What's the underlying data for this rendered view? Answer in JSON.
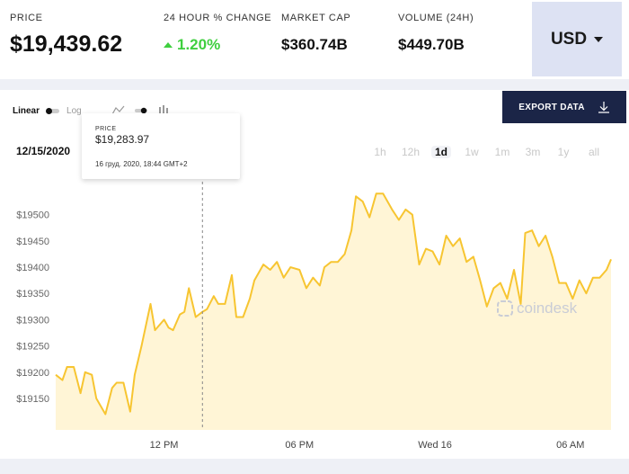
{
  "header": {
    "price": {
      "label": "PRICE",
      "value": "$19,439.62"
    },
    "change": {
      "label": "24 HOUR % CHANGE",
      "value": "1.20%"
    },
    "market_cap": {
      "label": "MARKET CAP",
      "value": "$360.74B"
    },
    "volume": {
      "label": "VOLUME (24H)",
      "value": "$449.70B"
    },
    "currency": "USD"
  },
  "toolbar": {
    "linear_label": "Linear",
    "log_label": "Log",
    "export_label": "EXPORT DATA"
  },
  "date_label": "12/15/2020",
  "ranges": [
    "1h",
    "12h",
    "1d",
    "1w",
    "1m",
    "3m",
    "1y",
    "all"
  ],
  "active_range": "1d",
  "tooltip": {
    "label": "PRICE",
    "value": "$19,283.97",
    "time": "16 груд. 2020, 18:44 GMT+2"
  },
  "watermark": "coindesk",
  "colors": {
    "line": "#f7c531",
    "fill": "#fff5d6",
    "accent_green": "#3fcf3f",
    "navy": "#1b2547"
  },
  "chart_data": {
    "type": "area",
    "yticks": [
      19150,
      19200,
      19250,
      19300,
      19350,
      19400,
      19450,
      19500
    ],
    "ylim": [
      19090,
      19580
    ],
    "xtick_labels": [
      "12 PM",
      "06 PM",
      "Wed 16",
      "06 AM"
    ],
    "xtick_hours": [
      12,
      18,
      24,
      30
    ],
    "xlim_hours": [
      7.2,
      31.8
    ],
    "hover_hour": 13.7,
    "series": [
      {
        "hours": [
          7.2,
          7.5,
          7.7,
          8.0,
          8.3,
          8.5,
          8.8,
          9.0,
          9.4,
          9.7,
          9.9,
          10.2,
          10.5,
          10.7,
          11.0,
          11.4,
          11.6,
          12.0,
          12.2,
          12.4,
          12.7,
          12.9,
          13.1,
          13.4,
          13.7,
          13.9,
          14.2,
          14.4,
          14.7,
          15.0,
          15.2,
          15.5,
          15.8,
          16.0,
          16.4,
          16.7,
          17.0,
          17.3,
          17.6,
          18.0,
          18.3,
          18.6,
          18.9,
          19.1,
          19.4,
          19.7,
          20.0,
          20.3,
          20.5,
          20.8,
          21.1,
          21.4,
          21.7,
          22.1,
          22.4,
          22.7,
          23.0,
          23.3,
          23.6,
          23.9,
          24.2,
          24.5,
          24.8,
          25.1,
          25.4,
          25.7,
          26.0,
          26.3,
          26.6,
          26.9,
          27.2,
          27.5,
          27.8,
          28.0,
          28.3,
          28.6,
          28.9,
          29.2,
          29.5,
          29.8,
          30.1,
          30.4,
          30.7,
          31.0,
          31.3,
          31.6,
          31.8
        ],
        "values": [
          19195,
          19185,
          19210,
          19210,
          19160,
          19200,
          19195,
          19150,
          19120,
          19170,
          19180,
          19180,
          19125,
          19195,
          19250,
          19330,
          19280,
          19300,
          19285,
          19280,
          19310,
          19315,
          19360,
          19305,
          19315,
          19320,
          19345,
          19330,
          19330,
          19385,
          19305,
          19305,
          19340,
          19375,
          19405,
          19395,
          19410,
          19380,
          19400,
          19395,
          19360,
          19380,
          19365,
          19400,
          19410,
          19410,
          19425,
          19470,
          19535,
          19525,
          19495,
          19540,
          19540,
          19510,
          19490,
          19510,
          19500,
          19405,
          19435,
          19430,
          19405,
          19460,
          19440,
          19455,
          19410,
          19420,
          19375,
          19325,
          19360,
          19370,
          19340,
          19395,
          19330,
          19465,
          19470,
          19440,
          19460,
          19420,
          19370,
          19370,
          19340,
          19375,
          19350,
          19380,
          19380,
          19395,
          19415
        ]
      }
    ]
  }
}
